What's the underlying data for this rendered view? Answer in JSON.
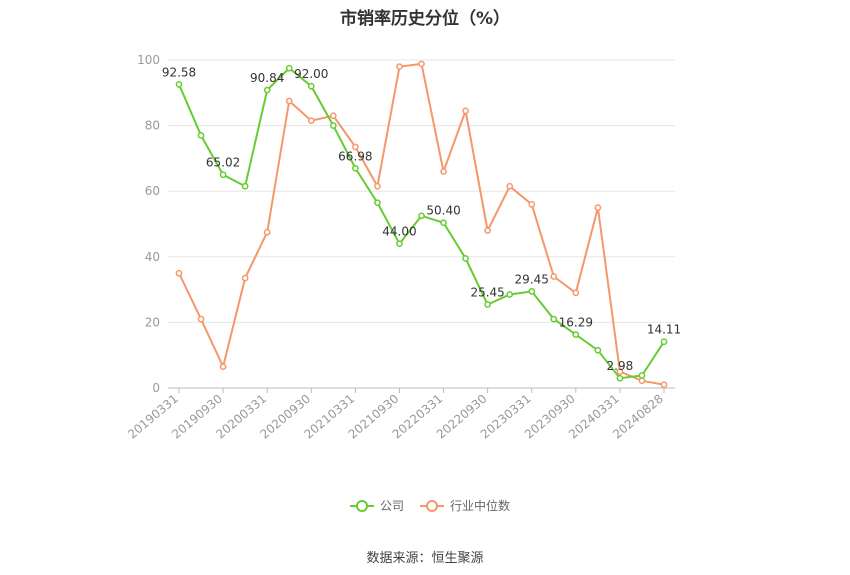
{
  "title": "市销率历史分位（%）",
  "source": "数据来源：恒生聚源",
  "chart_data": {
    "type": "line",
    "title": "市销率历史分位（%）",
    "ylim": [
      0,
      100
    ],
    "yticks": [
      0,
      20,
      40,
      60,
      80,
      100
    ],
    "grid": true,
    "legend_position": "bottom-center",
    "x": [
      "20190331",
      "20190630",
      "20190930",
      "20191231",
      "20200331",
      "20200630",
      "20200930",
      "20201231",
      "20210331",
      "20210630",
      "20210930",
      "20211231",
      "20220331",
      "20220630",
      "20220930",
      "20221231",
      "20230331",
      "20230630",
      "20230930",
      "20231231",
      "20240331",
      "20240630",
      "20240828"
    ],
    "xtick_labels": [
      "20190331",
      "20190930",
      "20200331",
      "20200930",
      "20210331",
      "20210930",
      "20220331",
      "20220930",
      "20230331",
      "20230930",
      "20240331",
      "20240828"
    ],
    "series": [
      {
        "name": "公司",
        "color": "#66cc33",
        "values": [
          92.58,
          77.0,
          65.02,
          61.5,
          90.84,
          97.5,
          92.0,
          80.0,
          66.98,
          56.5,
          44.0,
          52.5,
          50.4,
          39.5,
          25.45,
          28.5,
          29.45,
          21.0,
          16.29,
          11.5,
          2.98,
          3.8,
          14.11
        ],
        "labels": {
          "0": "92.58",
          "2": "65.02",
          "4": "90.84",
          "6": "92.00",
          "8": "66.98",
          "10": "44.00",
          "12": "50.40",
          "14": "25.45",
          "16": "29.45",
          "18": "16.29",
          "20": "2.98",
          "22": "14.11"
        }
      },
      {
        "name": "行业中位数",
        "color": "#f5976b",
        "values": [
          35.0,
          21.0,
          6.5,
          33.5,
          47.5,
          87.5,
          81.5,
          83.0,
          73.5,
          61.5,
          98.0,
          98.8,
          66.0,
          84.5,
          48.0,
          61.5,
          56.0,
          34.0,
          29.0,
          55.0,
          5.0,
          2.2,
          1.0
        ]
      }
    ]
  }
}
